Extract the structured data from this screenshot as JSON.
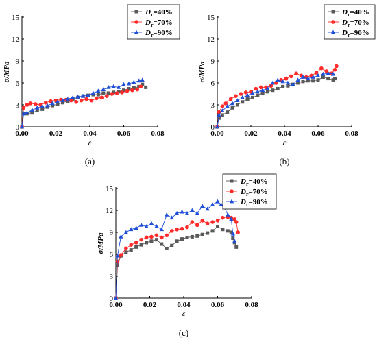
{
  "figure": {
    "panels": [
      {
        "caption": "(a)",
        "ylabel": "σ/MPa",
        "xlabel": "ε"
      },
      {
        "caption": "(b)",
        "ylabel": "σ/MPa",
        "xlabel": "ε"
      },
      {
        "caption": "(c)",
        "ylabel": "σ/MPa",
        "xlabel": "ε"
      }
    ]
  },
  "chart_data": [
    {
      "type": "line",
      "title": "",
      "caption": "(a)",
      "xlabel": "ε",
      "ylabel": "σ/MPa",
      "xlim": [
        0,
        0.08
      ],
      "ylim": [
        0,
        15
      ],
      "xticks": [
        "0.00",
        "0.02",
        "0.04",
        "0.06",
        "0.08"
      ],
      "yticks": [
        "0",
        "3",
        "6",
        "9",
        "12",
        "15"
      ],
      "legend_position": "top-right",
      "series": [
        {
          "name": "Dr=40%",
          "name_base": "D",
          "name_sub": "r",
          "name_rest": "=40%",
          "color": "#595959",
          "marker": "square",
          "x": [
            0,
            0.001,
            0.003,
            0.006,
            0.009,
            0.012,
            0.015,
            0.018,
            0.021,
            0.024,
            0.027,
            0.03,
            0.033,
            0.036,
            0.039,
            0.042,
            0.045,
            0.048,
            0.051,
            0.054,
            0.057,
            0.06,
            0.063,
            0.066,
            0.069,
            0.071,
            0.073
          ],
          "y": [
            0,
            1.8,
            1.8,
            1.9,
            2.2,
            2.4,
            2.7,
            2.9,
            3.1,
            3.3,
            3.5,
            3.8,
            4.0,
            4.2,
            4.3,
            4.4,
            4.4,
            4.6,
            4.6,
            4.7,
            4.8,
            5.0,
            5.2,
            5.3,
            5.5,
            5.8,
            5.4
          ]
        },
        {
          "name": "Dr=70%",
          "name_base": "D",
          "name_sub": "r",
          "name_rest": "=70%",
          "color": "#ff2a2a",
          "marker": "circle",
          "x": [
            0,
            0.001,
            0.003,
            0.005,
            0.008,
            0.011,
            0.014,
            0.017,
            0.02,
            0.023,
            0.026,
            0.029,
            0.032,
            0.035,
            0.038,
            0.041,
            0.044,
            0.047,
            0.05,
            0.053,
            0.056,
            0.059,
            0.062,
            0.065,
            0.068,
            0.07
          ],
          "y": [
            0,
            2.6,
            3.0,
            3.2,
            3.1,
            3.0,
            3.3,
            3.5,
            3.6,
            3.7,
            3.7,
            3.6,
            3.4,
            3.6,
            3.8,
            3.6,
            3.9,
            4.0,
            4.2,
            4.5,
            4.6,
            4.7,
            4.9,
            5.0,
            5.1,
            5.5
          ]
        },
        {
          "name": "Dr=90%",
          "name_base": "D",
          "name_sub": "r",
          "name_rest": "=90%",
          "color": "#1f4fd6",
          "marker": "triangle",
          "x": [
            0,
            0.001,
            0.003,
            0.006,
            0.009,
            0.012,
            0.015,
            0.018,
            0.021,
            0.024,
            0.027,
            0.03,
            0.033,
            0.036,
            0.039,
            0.042,
            0.045,
            0.048,
            0.051,
            0.054,
            0.057,
            0.06,
            0.063,
            0.066,
            0.069,
            0.071
          ],
          "y": [
            0,
            1.8,
            1.9,
            2.3,
            2.6,
            2.8,
            2.9,
            3.2,
            3.4,
            3.6,
            3.8,
            4.0,
            4.1,
            4.2,
            4.3,
            4.6,
            4.9,
            5.1,
            5.4,
            5.5,
            5.4,
            5.8,
            5.9,
            6.1,
            6.3,
            6.4
          ]
        }
      ]
    },
    {
      "type": "line",
      "title": "",
      "caption": "(b)",
      "xlabel": "ε",
      "ylabel": "σ/MPa",
      "xlim": [
        0,
        0.08
      ],
      "ylim": [
        0,
        15
      ],
      "xticks": [
        "0.00",
        "0.02",
        "0.04",
        "0.06",
        "0.08"
      ],
      "yticks": [
        "0",
        "3",
        "6",
        "9",
        "12",
        "15"
      ],
      "legend_position": "top-right",
      "series": [
        {
          "name": "Dr=40%",
          "name_base": "D",
          "name_sub": "r",
          "name_rest": "=40%",
          "color": "#595959",
          "marker": "square",
          "x": [
            0,
            0.001,
            0.003,
            0.006,
            0.009,
            0.012,
            0.015,
            0.018,
            0.021,
            0.024,
            0.027,
            0.03,
            0.033,
            0.036,
            0.039,
            0.042,
            0.045,
            0.048,
            0.051,
            0.054,
            0.057,
            0.06,
            0.063,
            0.066,
            0.069,
            0.07
          ],
          "y": [
            0,
            1.2,
            1.6,
            2.0,
            2.6,
            3.0,
            3.4,
            3.8,
            4.0,
            4.3,
            4.6,
            4.8,
            5.0,
            5.2,
            5.5,
            5.6,
            5.8,
            6.0,
            6.2,
            6.3,
            6.3,
            6.4,
            6.8,
            6.6,
            6.4,
            6.6
          ]
        },
        {
          "name": "Dr=70%",
          "name_base": "D",
          "name_sub": "r",
          "name_rest": "=70%",
          "color": "#ff2a2a",
          "marker": "circle",
          "x": [
            0,
            0.001,
            0.003,
            0.005,
            0.008,
            0.011,
            0.014,
            0.017,
            0.02,
            0.023,
            0.026,
            0.029,
            0.032,
            0.035,
            0.038,
            0.041,
            0.044,
            0.047,
            0.05,
            0.053,
            0.056,
            0.059,
            0.062,
            0.065,
            0.068,
            0.07,
            0.071
          ],
          "y": [
            0,
            2.0,
            2.8,
            3.2,
            3.8,
            4.2,
            4.5,
            4.7,
            4.8,
            5.2,
            5.4,
            5.4,
            5.6,
            6.0,
            6.4,
            6.6,
            6.9,
            7.3,
            7.0,
            6.8,
            7.0,
            7.4,
            8.0,
            7.6,
            7.3,
            7.8,
            8.3
          ]
        },
        {
          "name": "Dr=90%",
          "name_base": "D",
          "name_sub": "r",
          "name_rest": "=90%",
          "color": "#1f4fd6",
          "marker": "triangle",
          "x": [
            0,
            0.001,
            0.003,
            0.006,
            0.009,
            0.012,
            0.015,
            0.018,
            0.021,
            0.024,
            0.027,
            0.03,
            0.033,
            0.036,
            0.039,
            0.042,
            0.045,
            0.048,
            0.051,
            0.054,
            0.057,
            0.06,
            0.063,
            0.066,
            0.069
          ],
          "y": [
            0,
            1.6,
            2.2,
            2.8,
            3.2,
            3.6,
            4.0,
            4.3,
            4.6,
            4.8,
            5.0,
            5.2,
            6.0,
            6.4,
            6.2,
            6.0,
            5.8,
            6.4,
            6.8,
            6.6,
            6.8,
            7.0,
            7.2,
            7.3,
            7.2
          ]
        }
      ]
    },
    {
      "type": "line",
      "title": "",
      "caption": "(c)",
      "xlabel": "ε",
      "ylabel": "σ/MPa",
      "xlim": [
        0,
        0.08
      ],
      "ylim": [
        0,
        15
      ],
      "xticks": [
        "0.00",
        "0.02",
        "0.04",
        "0.06",
        "0.08"
      ],
      "yticks": [
        "0",
        "3",
        "6",
        "9",
        "12",
        "15"
      ],
      "legend_position": "top-right",
      "series": [
        {
          "name": "Dr=40%",
          "name_base": "D",
          "name_sub": "r",
          "name_rest": "=40%",
          "color": "#595959",
          "marker": "square",
          "x": [
            0,
            0.001,
            0.003,
            0.006,
            0.009,
            0.012,
            0.015,
            0.018,
            0.021,
            0.024,
            0.027,
            0.03,
            0.033,
            0.036,
            0.039,
            0.042,
            0.045,
            0.048,
            0.051,
            0.054,
            0.057,
            0.06,
            0.063,
            0.066,
            0.068,
            0.069,
            0.07,
            0.071
          ],
          "y": [
            0,
            4.5,
            5.8,
            6.3,
            6.6,
            7.0,
            7.3,
            7.6,
            7.8,
            8.0,
            7.4,
            6.8,
            7.2,
            7.8,
            8.1,
            8.3,
            8.4,
            8.5,
            8.7,
            8.9,
            9.2,
            9.8,
            9.4,
            9.2,
            9.0,
            8.2,
            7.6,
            7.0
          ]
        },
        {
          "name": "Dr=70%",
          "name_base": "D",
          "name_sub": "r",
          "name_rest": "=70%",
          "color": "#ff2a2a",
          "marker": "circle",
          "x": [
            0,
            0.001,
            0.003,
            0.006,
            0.009,
            0.012,
            0.015,
            0.018,
            0.021,
            0.024,
            0.027,
            0.03,
            0.033,
            0.036,
            0.039,
            0.042,
            0.045,
            0.048,
            0.051,
            0.054,
            0.057,
            0.06,
            0.063,
            0.066,
            0.068,
            0.07,
            0.071,
            0.072
          ],
          "y": [
            0,
            5.0,
            5.9,
            6.8,
            7.3,
            7.6,
            8.0,
            8.3,
            8.4,
            8.6,
            8.3,
            8.6,
            9.2,
            9.4,
            9.5,
            9.7,
            10.4,
            10.0,
            10.6,
            10.2,
            10.4,
            10.6,
            11.0,
            11.1,
            11.0,
            10.8,
            10.4,
            9.0
          ]
        },
        {
          "name": "Dr=90%",
          "name_base": "D",
          "name_sub": "r",
          "name_rest": "=90%",
          "color": "#1f4fd6",
          "marker": "triangle",
          "x": [
            0,
            0.001,
            0.003,
            0.006,
            0.009,
            0.012,
            0.015,
            0.018,
            0.021,
            0.024,
            0.027,
            0.03,
            0.033,
            0.036,
            0.039,
            0.042,
            0.045,
            0.048,
            0.051,
            0.054,
            0.057,
            0.06,
            0.062,
            0.064,
            0.066,
            0.068,
            0.069,
            0.07
          ],
          "y": [
            0,
            5.8,
            8.4,
            9.0,
            9.4,
            9.6,
            10.0,
            9.8,
            10.2,
            9.8,
            9.4,
            11.4,
            11.0,
            11.6,
            11.8,
            11.6,
            12.0,
            11.6,
            12.6,
            12.2,
            12.8,
            13.2,
            12.8,
            12.4,
            11.4,
            10.8,
            8.8,
            7.8
          ]
        }
      ]
    }
  ]
}
